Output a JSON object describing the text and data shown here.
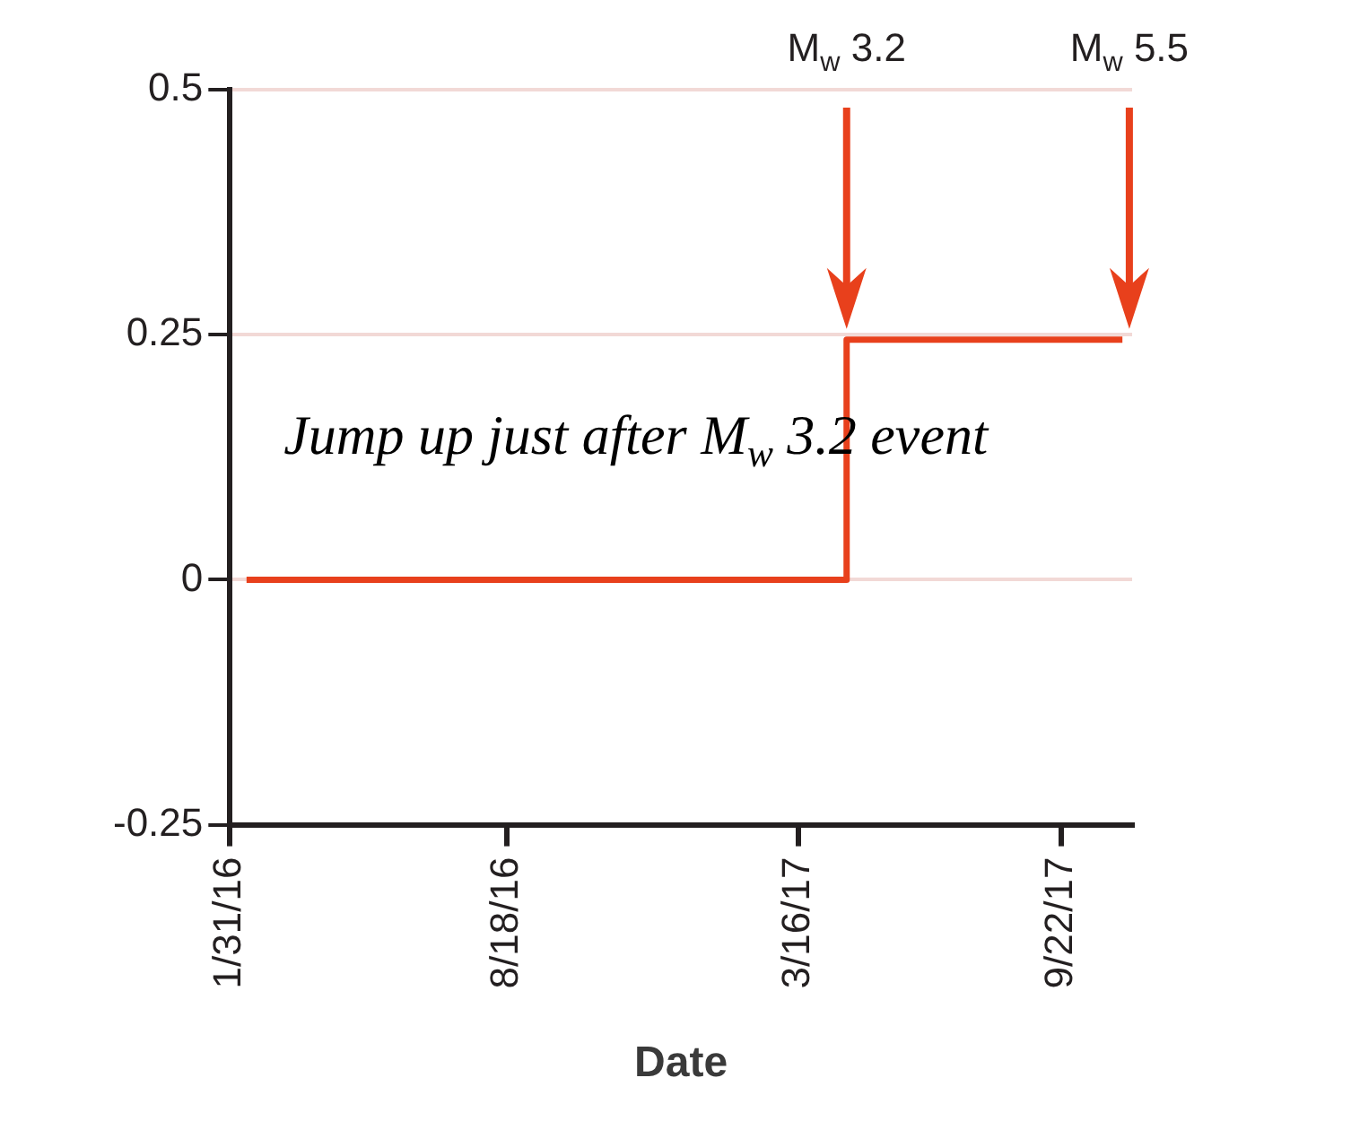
{
  "chart_data": {
    "type": "step",
    "xlabel": "Date",
    "xlim": [
      "2016-01-31",
      "2017-11-12"
    ],
    "xticks": [
      {
        "value": "2016-01-31",
        "label": "1/31/16"
      },
      {
        "value": "2016-08-18",
        "label": "8/18/16"
      },
      {
        "value": "2017-03-16",
        "label": "3/16/17"
      },
      {
        "value": "2017-09-22",
        "label": "9/22/17"
      }
    ],
    "ylim": [
      -0.25,
      0.5
    ],
    "yticks": [
      -0.25,
      0,
      0.25,
      0.5
    ],
    "grid": "y",
    "legend": false,
    "line_style": "solid",
    "marker": "none",
    "series": [
      {
        "color": "#e8401c",
        "x": [
          "2016-02-12",
          "2017-04-20",
          "2017-11-05"
        ],
        "values": [
          0,
          0.245,
          0.245
        ]
      }
    ],
    "ref_lines": [
      {
        "axis": "x",
        "value": "2017-04-20",
        "label": "M$_{w}$ 3.2"
      },
      {
        "axis": "x",
        "value": "2017-11-10",
        "label": "M$_{w}$ 5.5"
      }
    ],
    "annotations": [
      "Jump up just after M$_{w}$ 3.2 event"
    ]
  }
}
